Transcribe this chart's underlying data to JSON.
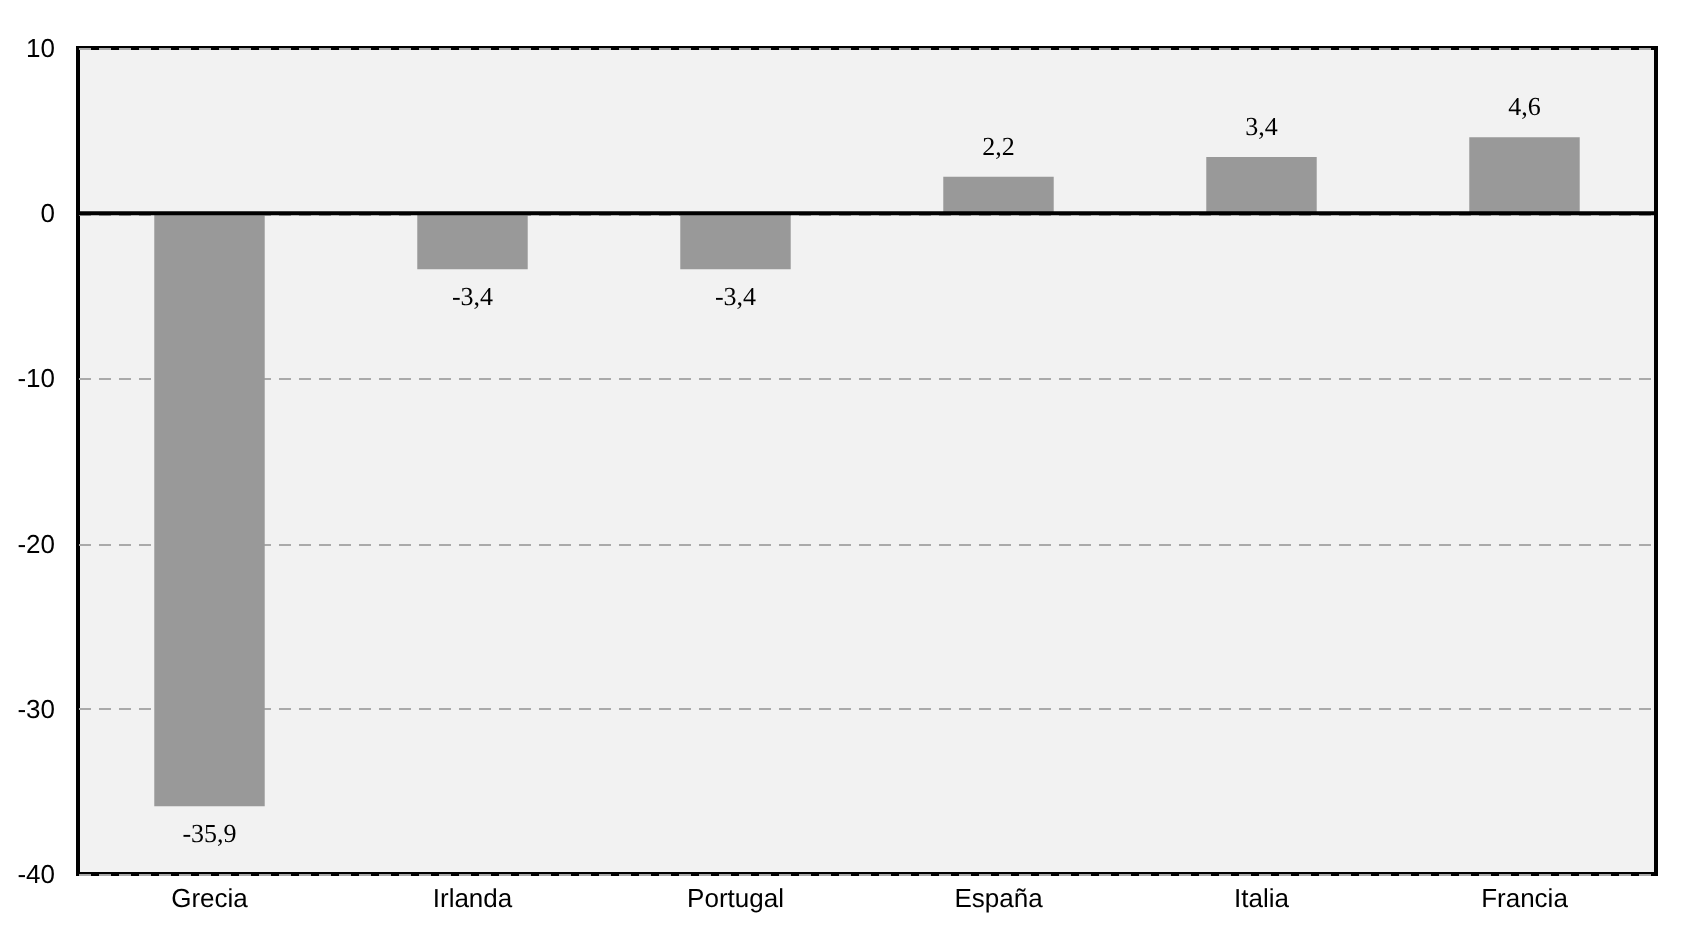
{
  "chart_data": {
    "type": "bar",
    "categories": [
      "Grecia",
      "Irlanda",
      "Portugal",
      "España",
      "Italia",
      "Francia"
    ],
    "values": [
      -35.9,
      -3.4,
      -3.4,
      2.2,
      3.4,
      4.6
    ],
    "value_labels": [
      "-35,9",
      "-3,4",
      "-3,4",
      "2,2",
      "3,4",
      "4,6"
    ],
    "color": "#999999",
    "ylim": [
      -40,
      10
    ],
    "yticks": [
      -40,
      -30,
      -20,
      -10,
      0,
      10
    ],
    "grid": "y",
    "ref_lines": [
      {
        "axis": "y",
        "value": 0,
        "color": "#000000",
        "line_style": "solid"
      }
    ]
  }
}
